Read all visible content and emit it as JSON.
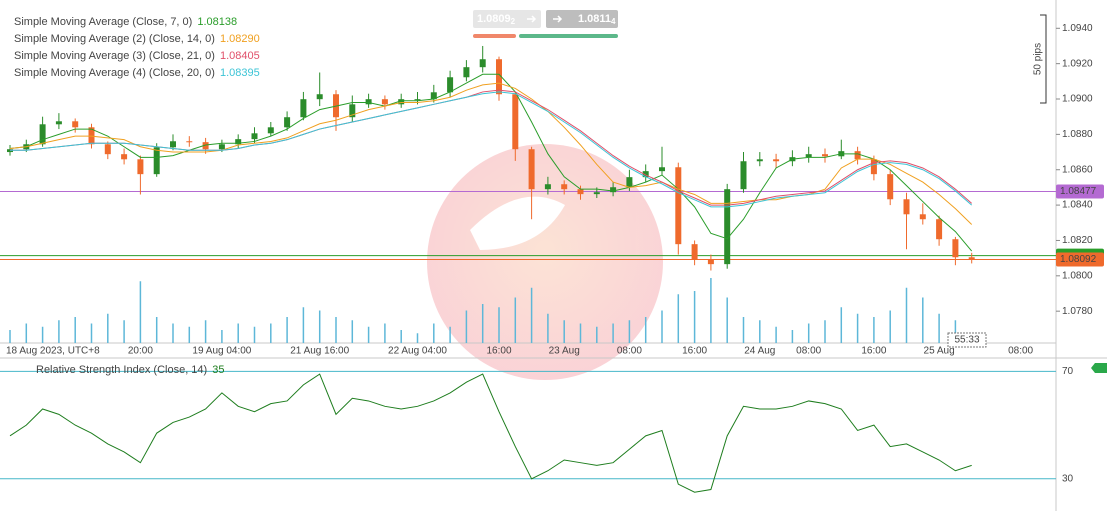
{
  "chart_data": [
    {
      "type": "candlestick",
      "series_legend_note": null,
      "categories": [
        "18 Aug 2023, UTC+8",
        null,
        null,
        null,
        null,
        null,
        null,
        null,
        "20:00",
        null,
        null,
        null,
        null,
        "19 Aug 04:00",
        null,
        null,
        null,
        null,
        null,
        "21 Aug 16:00",
        null,
        null,
        null,
        null,
        null,
        "22 Aug 04:00",
        null,
        null,
        null,
        null,
        "16:00",
        null,
        null,
        null,
        "23 Aug",
        null,
        null,
        null,
        "08:00",
        null,
        null,
        null,
        "16:00",
        null,
        null,
        null,
        "24 Aug",
        null,
        null,
        "08:00",
        null,
        null,
        null,
        "16:00",
        null,
        null,
        null,
        "25 Aug",
        null,
        null
      ],
      "next_label": "08:00",
      "open": [
        1.087,
        1.08716,
        1.08744,
        1.08857,
        1.08874,
        1.0884,
        1.08744,
        1.08688,
        1.08659,
        1.08575,
        1.08727,
        1.08761,
        1.08756,
        1.08716,
        1.08744,
        1.08773,
        1.08806,
        1.0884,
        1.08897,
        1.08999,
        1.09027,
        1.08897,
        1.0897,
        1.08999,
        1.0897,
        1.08999,
        1.08999,
        1.09038,
        1.09123,
        1.0918,
        1.09225,
        1.09027,
        1.08716,
        1.0849,
        1.08518,
        1.0849,
        1.08462,
        1.08473,
        1.08501,
        1.08558,
        1.08592,
        1.08614,
        1.08179,
        1.08094,
        1.08066,
        1.0849,
        1.08648,
        1.08659,
        1.08648,
        1.08671,
        1.08688,
        1.08676,
        1.08705,
        1.08659,
        1.08575,
        1.08433,
        1.08348,
        1.0832,
        1.08207,
        1.08105
      ],
      "high": [
        1.0874,
        1.0877,
        1.089,
        1.0892,
        1.0889,
        1.0886,
        1.0876,
        1.0872,
        1.0868,
        1.0875,
        1.088,
        1.0879,
        1.0878,
        1.0877,
        1.088,
        1.0884,
        1.0887,
        1.0893,
        1.0904,
        1.0915,
        1.0905,
        1.0902,
        1.0903,
        1.0902,
        1.0903,
        1.0904,
        1.0908,
        1.0916,
        1.0922,
        1.093,
        1.0924,
        1.0904,
        1.0873,
        1.0856,
        1.0854,
        1.0851,
        1.085,
        1.0853,
        1.086,
        1.0863,
        1.0873,
        1.0864,
        1.082,
        1.0812,
        1.0852,
        1.087,
        1.087,
        1.0869,
        1.0871,
        1.0873,
        1.0872,
        1.0877,
        1.0873,
        1.0868,
        1.086,
        1.0847,
        1.0841,
        1.0834,
        1.0822,
        1.0813
      ],
      "low": [
        1.0868,
        1.087,
        1.0873,
        1.0883,
        1.0881,
        1.0872,
        1.0866,
        1.0863,
        1.0846,
        1.0856,
        1.0871,
        1.0873,
        1.0869,
        1.087,
        1.0872,
        1.0875,
        1.0879,
        1.0882,
        1.0888,
        1.0896,
        1.0882,
        1.0887,
        1.0895,
        1.0894,
        1.0895,
        1.0897,
        1.0898,
        1.0901,
        1.091,
        1.0915,
        1.0899,
        1.0865,
        1.0832,
        1.0846,
        1.0846,
        1.0843,
        1.0844,
        1.0845,
        1.0848,
        1.0853,
        1.0857,
        1.0812,
        1.0806,
        1.0803,
        1.0804,
        1.0847,
        1.0862,
        1.0861,
        1.0862,
        1.0864,
        1.0864,
        1.0866,
        1.0863,
        1.0854,
        1.084,
        1.0815,
        1.0829,
        1.0817,
        1.0806,
        1.0807
      ],
      "close": [
        1.08716,
        1.08744,
        1.08857,
        1.08874,
        1.0884,
        1.08744,
        1.08688,
        1.08659,
        1.08575,
        1.08727,
        1.08761,
        1.08756,
        1.08716,
        1.08744,
        1.08773,
        1.08806,
        1.0884,
        1.08897,
        1.08999,
        1.09027,
        1.08897,
        1.0897,
        1.08999,
        1.0897,
        1.08999,
        1.08999,
        1.09038,
        1.09123,
        1.0918,
        1.09225,
        1.09027,
        1.08716,
        1.0849,
        1.08518,
        1.0849,
        1.08462,
        1.08473,
        1.08501,
        1.08558,
        1.08592,
        1.08614,
        1.08179,
        1.08094,
        1.08066,
        1.0849,
        1.08648,
        1.08659,
        1.08648,
        1.08671,
        1.08688,
        1.08676,
        1.08705,
        1.08659,
        1.08575,
        1.08433,
        1.08348,
        1.0832,
        1.08207,
        1.08105,
        1.08092
      ],
      "volume": [
        20,
        30,
        25,
        35,
        40,
        30,
        45,
        35,
        95,
        40,
        30,
        25,
        35,
        20,
        30,
        25,
        30,
        40,
        55,
        50,
        40,
        35,
        25,
        30,
        20,
        15,
        30,
        25,
        50,
        60,
        55,
        70,
        85,
        45,
        35,
        30,
        25,
        30,
        35,
        40,
        50,
        75,
        80,
        100,
        70,
        40,
        35,
        25,
        20,
        30,
        35,
        55,
        45,
        40,
        50,
        85,
        70,
        45,
        35,
        15
      ],
      "up_color": "#2b8c2b",
      "down_color": "#ef6a2c",
      "volume_color": "#5db7d8",
      "series": [
        {
          "name": "Simple Moving Average (Close, 7, 0)",
          "last_value_label": "1.08138",
          "color": "#2a9d2a",
          "values": [
            1.0872,
            1.0873,
            1.0877,
            1.088,
            1.0883,
            1.0883,
            1.0879,
            1.0873,
            1.0867,
            1.0867,
            1.0868,
            1.0871,
            1.0874,
            1.0875,
            1.0875,
            1.0876,
            1.0879,
            1.0883,
            1.0889,
            1.0894,
            1.0896,
            1.0898,
            1.0898,
            1.0896,
            1.0899,
            1.0899,
            1.09,
            1.0904,
            1.0909,
            1.0914,
            1.0914,
            1.0904,
            1.0887,
            1.0869,
            1.0856,
            1.0849,
            1.0849,
            1.0848,
            1.085,
            1.0853,
            1.0857,
            1.0849,
            1.0839,
            1.0824,
            1.0821,
            1.0832,
            1.0847,
            1.0861,
            1.0866,
            1.0867,
            1.0867,
            1.0869,
            1.0869,
            1.0866,
            1.086,
            1.0851,
            1.0842,
            1.0833,
            1.0825,
            1.0814
          ]
        },
        {
          "name": "Simple Moving Average (2) (Close, 14, 0)",
          "last_value_label": "1.08290",
          "color": "#f0a020",
          "values": [
            1.0872,
            1.0873,
            1.0875,
            1.0877,
            1.0879,
            1.0879,
            1.0878,
            1.0877,
            1.0873,
            1.0871,
            1.087,
            1.087,
            1.087,
            1.0871,
            1.0874,
            1.0875,
            1.0876,
            1.0878,
            1.0882,
            1.0886,
            1.0888,
            1.0891,
            1.0894,
            1.0896,
            1.0898,
            1.0898,
            1.0899,
            1.0901,
            1.0905,
            1.0908,
            1.0909,
            1.0906,
            1.09,
            1.0893,
            1.0884,
            1.0874,
            1.0863,
            1.0853,
            1.085,
            1.0851,
            1.0853,
            1.0849,
            1.0846,
            1.0841,
            1.0841,
            1.0842,
            1.0843,
            1.0843,
            1.0845,
            1.0846,
            1.0849,
            1.0861,
            1.0866,
            1.0866,
            1.0863,
            1.0858,
            1.0853,
            1.0846,
            1.0838,
            1.0829
          ]
        },
        {
          "name": "Simple Moving Average (3) (Close, 21, 0)",
          "last_value_label": "1.08405",
          "color": "#e0506a",
          "values": [
            1.0871,
            1.0871,
            1.0872,
            1.0873,
            1.0874,
            1.0875,
            1.0875,
            1.0875,
            1.0874,
            1.0873,
            1.0872,
            1.0871,
            1.0871,
            1.0871,
            1.0872,
            1.0874,
            1.0875,
            1.0877,
            1.088,
            1.0883,
            1.0885,
            1.0887,
            1.0889,
            1.0891,
            1.0893,
            1.0895,
            1.0897,
            1.0899,
            1.0901,
            1.0904,
            1.0905,
            1.0904,
            1.0899,
            1.0894,
            1.0888,
            1.0882,
            1.0875,
            1.0868,
            1.0862,
            1.0857,
            1.0853,
            1.0848,
            1.0844,
            1.084,
            1.084,
            1.0841,
            1.0843,
            1.0845,
            1.0846,
            1.0847,
            1.0848,
            1.0854,
            1.086,
            1.0864,
            1.0865,
            1.0864,
            1.0861,
            1.0856,
            1.0849,
            1.0841
          ]
        },
        {
          "name": "Simple Moving Average (4) (Close, 20, 0)",
          "last_value_label": "1.08395",
          "color": "#3cc4d6",
          "values": [
            1.0871,
            1.0871,
            1.0872,
            1.0873,
            1.0874,
            1.0875,
            1.0875,
            1.0875,
            1.0874,
            1.0873,
            1.0872,
            1.0871,
            1.0871,
            1.0871,
            1.0872,
            1.0874,
            1.0875,
            1.0877,
            1.088,
            1.0883,
            1.0885,
            1.0887,
            1.0889,
            1.0891,
            1.0893,
            1.0895,
            1.0897,
            1.0899,
            1.0901,
            1.0903,
            1.0904,
            1.0903,
            1.0898,
            1.0893,
            1.0887,
            1.0881,
            1.0874,
            1.0867,
            1.0861,
            1.0856,
            1.0852,
            1.0847,
            1.0843,
            1.0839,
            1.0839,
            1.084,
            1.0842,
            1.0844,
            1.0845,
            1.0846,
            1.0847,
            1.0853,
            1.0859,
            1.0863,
            1.0864,
            1.0863,
            1.086,
            1.0855,
            1.0848,
            1.084
          ]
        }
      ],
      "price_lines": [
        {
          "value": 1.08477,
          "color": "#b46ad2",
          "show_label": true
        },
        {
          "value": 1.08114,
          "color": "#2a9d2a",
          "show_label": false
        },
        {
          "value": 1.08092,
          "color": "#ef6a2c",
          "show_label": true
        }
      ],
      "ylim": [
        1.0762,
        1.0956
      ],
      "yticks": [
        {
          "value": 1.078,
          "label": "1.0780"
        },
        {
          "value": 1.08,
          "label": "1.0800"
        },
        {
          "value": 1.082,
          "label": "1.0820"
        },
        {
          "value": 1.084,
          "label": "1.0840"
        },
        {
          "value": 1.086,
          "label": "1.0860"
        },
        {
          "value": 1.088,
          "label": "1.0880"
        },
        {
          "value": 1.09,
          "label": "1.0900"
        },
        {
          "value": 1.092,
          "label": "1.0920"
        },
        {
          "value": 1.094,
          "label": "1.0940"
        }
      ],
      "pips_label": "50 pips",
      "countdown": "55:33",
      "bid": {
        "main": "1.0809",
        "pip": "2"
      },
      "ask": {
        "main": "1.0811",
        "pip": "4"
      }
    },
    {
      "type": "line",
      "name": "Relative Strength Index (Close, 14)",
      "last_value_label": "35",
      "color": "#1e7d1e",
      "level_color": "#46b7c9",
      "values": [
        46,
        50,
        56,
        54,
        50,
        47,
        43,
        40,
        36,
        47,
        51,
        53,
        56,
        62,
        57,
        55,
        58,
        59,
        65,
        69,
        54,
        60,
        59,
        57,
        56,
        57,
        59,
        62,
        66,
        69,
        55,
        42,
        30,
        33,
        37,
        36,
        35,
        36,
        41,
        46,
        48,
        28,
        25,
        26,
        46,
        57,
        56,
        56,
        57,
        59,
        58,
        56,
        48,
        50,
        42,
        43,
        40,
        37,
        33,
        35
      ],
      "ylim": [
        18,
        75
      ],
      "yticks": [
        30,
        70
      ]
    }
  ]
}
